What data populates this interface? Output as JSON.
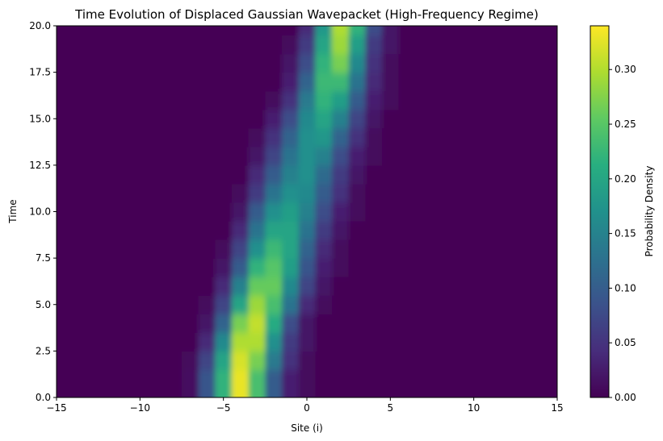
{
  "chart_data": {
    "type": "heatmap",
    "title": "Time Evolution of Displaced Gaussian Wavepacket (High-Frequency Regime)",
    "xlabel": "Site (i)",
    "ylabel": "Time",
    "colorbar_label": "Probability Density",
    "colormap": "viridis",
    "xlim": [
      -15,
      15
    ],
    "ylim": [
      0,
      20
    ],
    "clim": [
      0,
      0.34
    ],
    "x_ticks": [
      -15,
      -10,
      -5,
      0,
      5,
      10,
      15
    ],
    "x_tick_labels": [
      "−15",
      "−10",
      "−5",
      "0",
      "5",
      "10",
      "15"
    ],
    "y_ticks": [
      0,
      2.5,
      5,
      7.5,
      10,
      12.5,
      15,
      17.5,
      20
    ],
    "y_tick_labels": [
      "0.0",
      "2.5",
      "5.0",
      "7.5",
      "10.0",
      "12.5",
      "15.0",
      "17.5",
      "20.0"
    ],
    "colorbar_ticks": [
      0,
      0.05,
      0.1,
      0.15,
      0.2,
      0.25,
      0.3
    ],
    "colorbar_tick_labels": [
      "0.00",
      "0.05",
      "0.10",
      "0.15",
      "0.20",
      "0.25",
      "0.30"
    ],
    "sites": [
      -15,
      -14,
      -13,
      -12,
      -11,
      -10,
      -9,
      -8,
      -7,
      -6,
      -5,
      -4,
      -3,
      -2,
      -1,
      0,
      1,
      2,
      3,
      4,
      5,
      6,
      7,
      8,
      9,
      10,
      11,
      12,
      13,
      14,
      15
    ],
    "times": [
      0,
      1,
      2,
      3,
      4,
      5,
      6,
      7,
      8,
      9,
      10,
      11,
      12,
      13,
      14,
      15,
      16,
      17,
      18,
      19,
      20
    ],
    "density": [
      [
        0,
        0,
        0,
        0,
        0,
        0,
        0,
        0,
        0.015,
        0.09,
        0.22,
        0.33,
        0.24,
        0.1,
        0.03,
        0.01,
        0,
        0,
        0,
        0,
        0,
        0,
        0,
        0,
        0,
        0,
        0,
        0,
        0,
        0,
        0
      ],
      [
        0,
        0,
        0,
        0,
        0,
        0,
        0,
        0,
        0.015,
        0.09,
        0.22,
        0.33,
        0.24,
        0.1,
        0.03,
        0.01,
        0,
        0,
        0,
        0,
        0,
        0,
        0,
        0,
        0,
        0,
        0,
        0,
        0,
        0,
        0
      ],
      [
        0,
        0,
        0,
        0,
        0,
        0,
        0,
        0,
        0.01,
        0.07,
        0.2,
        0.32,
        0.27,
        0.14,
        0.05,
        0.01,
        0,
        0,
        0,
        0,
        0,
        0,
        0,
        0,
        0,
        0,
        0,
        0,
        0,
        0,
        0
      ],
      [
        0,
        0,
        0,
        0,
        0,
        0,
        0,
        0,
        0,
        0.04,
        0.16,
        0.3,
        0.3,
        0.17,
        0.06,
        0.02,
        0,
        0,
        0,
        0,
        0,
        0,
        0,
        0,
        0,
        0,
        0,
        0,
        0,
        0,
        0
      ],
      [
        0,
        0,
        0,
        0,
        0,
        0,
        0,
        0,
        0,
        0.02,
        0.11,
        0.27,
        0.31,
        0.21,
        0.08,
        0.02,
        0,
        0,
        0,
        0,
        0,
        0,
        0,
        0,
        0,
        0,
        0,
        0,
        0,
        0,
        0
      ],
      [
        0,
        0,
        0,
        0,
        0,
        0,
        0,
        0,
        0,
        0.01,
        0.07,
        0.2,
        0.29,
        0.24,
        0.13,
        0.04,
        0.01,
        0,
        0,
        0,
        0,
        0,
        0,
        0,
        0,
        0,
        0,
        0,
        0,
        0,
        0
      ],
      [
        0,
        0,
        0,
        0,
        0,
        0,
        0,
        0,
        0,
        0,
        0.04,
        0.15,
        0.26,
        0.26,
        0.16,
        0.07,
        0.02,
        0,
        0,
        0,
        0,
        0,
        0,
        0,
        0,
        0,
        0,
        0,
        0,
        0,
        0
      ],
      [
        0,
        0,
        0,
        0,
        0,
        0,
        0,
        0,
        0,
        0,
        0.02,
        0.1,
        0.22,
        0.25,
        0.19,
        0.09,
        0.03,
        0.01,
        0,
        0,
        0,
        0,
        0,
        0,
        0,
        0,
        0,
        0,
        0,
        0,
        0
      ],
      [
        0,
        0,
        0,
        0,
        0,
        0,
        0,
        0,
        0,
        0,
        0.01,
        0.07,
        0.17,
        0.23,
        0.2,
        0.11,
        0.04,
        0.01,
        0,
        0,
        0,
        0,
        0,
        0,
        0,
        0,
        0,
        0,
        0,
        0,
        0
      ],
      [
        0,
        0,
        0,
        0,
        0,
        0,
        0,
        0,
        0,
        0,
        0,
        0.04,
        0.13,
        0.2,
        0.2,
        0.13,
        0.06,
        0.02,
        0,
        0,
        0,
        0,
        0,
        0,
        0,
        0,
        0,
        0,
        0,
        0,
        0
      ],
      [
        0,
        0,
        0,
        0,
        0,
        0,
        0,
        0,
        0,
        0,
        0,
        0.02,
        0.1,
        0.17,
        0.19,
        0.15,
        0.08,
        0.03,
        0.01,
        0,
        0,
        0,
        0,
        0,
        0,
        0,
        0,
        0,
        0,
        0,
        0
      ],
      [
        0,
        0,
        0,
        0,
        0,
        0,
        0,
        0,
        0,
        0,
        0,
        0.01,
        0.06,
        0.13,
        0.17,
        0.16,
        0.1,
        0.05,
        0.01,
        0,
        0,
        0,
        0,
        0,
        0,
        0,
        0,
        0,
        0,
        0,
        0
      ],
      [
        0,
        0,
        0,
        0,
        0,
        0,
        0,
        0,
        0,
        0,
        0,
        0,
        0.04,
        0.1,
        0.15,
        0.17,
        0.12,
        0.06,
        0.02,
        0,
        0,
        0,
        0,
        0,
        0,
        0,
        0,
        0,
        0,
        0,
        0
      ],
      [
        0,
        0,
        0,
        0,
        0,
        0,
        0,
        0,
        0,
        0,
        0,
        0,
        0.02,
        0.07,
        0.13,
        0.17,
        0.15,
        0.08,
        0.03,
        0.01,
        0,
        0,
        0,
        0,
        0,
        0,
        0,
        0,
        0,
        0,
        0
      ],
      [
        0,
        0,
        0,
        0,
        0,
        0,
        0,
        0,
        0,
        0,
        0,
        0,
        0.01,
        0.05,
        0.11,
        0.17,
        0.18,
        0.11,
        0.05,
        0.01,
        0,
        0,
        0,
        0,
        0,
        0,
        0,
        0,
        0,
        0,
        0
      ],
      [
        0,
        0,
        0,
        0,
        0,
        0,
        0,
        0,
        0,
        0,
        0,
        0,
        0,
        0.03,
        0.08,
        0.16,
        0.2,
        0.15,
        0.07,
        0.02,
        0,
        0,
        0,
        0,
        0,
        0,
        0,
        0,
        0,
        0,
        0
      ],
      [
        0,
        0,
        0,
        0,
        0,
        0,
        0,
        0,
        0,
        0,
        0,
        0,
        0,
        0.01,
        0.05,
        0.14,
        0.22,
        0.19,
        0.1,
        0.03,
        0.01,
        0,
        0,
        0,
        0,
        0,
        0,
        0,
        0,
        0,
        0
      ],
      [
        0,
        0,
        0,
        0,
        0,
        0,
        0,
        0,
        0,
        0,
        0,
        0,
        0,
        0,
        0.03,
        0.11,
        0.23,
        0.23,
        0.13,
        0.04,
        0.01,
        0,
        0,
        0,
        0,
        0,
        0,
        0,
        0,
        0,
        0
      ],
      [
        0,
        0,
        0,
        0,
        0,
        0,
        0,
        0,
        0,
        0,
        0,
        0,
        0,
        0,
        0.02,
        0.08,
        0.22,
        0.27,
        0.16,
        0.05,
        0.01,
        0,
        0,
        0,
        0,
        0,
        0,
        0,
        0,
        0,
        0
      ],
      [
        0,
        0,
        0,
        0,
        0,
        0,
        0,
        0,
        0,
        0,
        0,
        0,
        0,
        0,
        0.01,
        0.06,
        0.2,
        0.29,
        0.19,
        0.06,
        0.02,
        0,
        0,
        0,
        0,
        0,
        0,
        0,
        0,
        0,
        0
      ],
      [
        0,
        0,
        0,
        0,
        0,
        0,
        0,
        0,
        0,
        0,
        0,
        0,
        0,
        0,
        0,
        0.04,
        0.18,
        0.3,
        0.22,
        0.08,
        0.02,
        0,
        0,
        0,
        0,
        0,
        0,
        0,
        0,
        0,
        0
      ]
    ]
  }
}
